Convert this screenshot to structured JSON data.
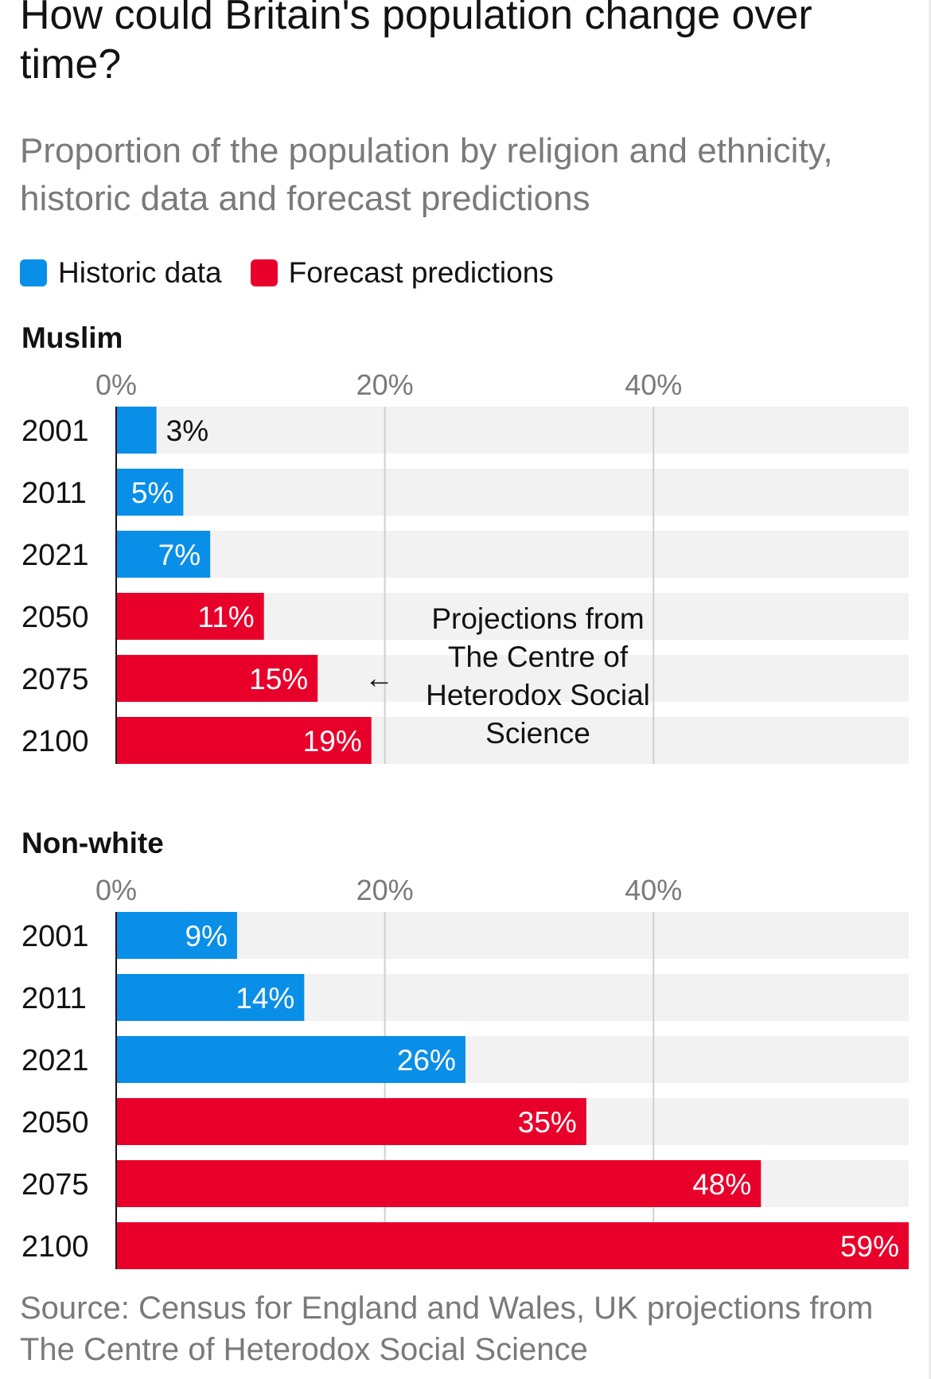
{
  "title": "How could Britain's population change over time?",
  "subtitle": "Proportion of the population by religion and ethnicity, historic data and forecast predictions",
  "legend": {
    "items": [
      {
        "label": "Historic data",
        "color": "#0a8fe8"
      },
      {
        "label": "Forecast predictions",
        "color": "#e8002b"
      }
    ]
  },
  "colors": {
    "historic": "#0a8fe8",
    "forecast": "#e8002b",
    "track": "#f2f2f2",
    "gridline": "#cfcfcf"
  },
  "source": "Source: Census for England and Wales, UK projections from The Centre of Heterodox Social Science",
  "chart_data": [
    {
      "type": "bar",
      "orientation": "horizontal",
      "title": "Muslim",
      "categories": [
        "2001",
        "2011",
        "2021",
        "2050",
        "2075",
        "2100"
      ],
      "values": [
        3,
        5,
        7,
        11,
        15,
        19
      ],
      "value_labels": [
        "3%",
        "5%",
        "7%",
        "11%",
        "15%",
        "19%"
      ],
      "kind": [
        "historic",
        "historic",
        "historic",
        "forecast",
        "forecast",
        "forecast"
      ],
      "xlim": [
        0,
        59
      ],
      "xticks": [
        0,
        20,
        40
      ],
      "xtick_labels": [
        "0%",
        "20%",
        "40%"
      ],
      "grid": true,
      "annotation": {
        "lines": [
          "Projections from",
          "The Centre of",
          "Heterodox Social",
          "Science"
        ],
        "arrow": "←",
        "points_to": "2075"
      }
    },
    {
      "type": "bar",
      "orientation": "horizontal",
      "title": "Non-white",
      "categories": [
        "2001",
        "2011",
        "2021",
        "2050",
        "2075",
        "2100"
      ],
      "values": [
        9,
        14,
        26,
        35,
        48,
        59
      ],
      "value_labels": [
        "9%",
        "14%",
        "26%",
        "35%",
        "48%",
        "59%"
      ],
      "kind": [
        "historic",
        "historic",
        "historic",
        "forecast",
        "forecast",
        "forecast"
      ],
      "xlim": [
        0,
        59
      ],
      "xticks": [
        0,
        20,
        40
      ],
      "xtick_labels": [
        "0%",
        "20%",
        "40%"
      ],
      "grid": true
    }
  ]
}
